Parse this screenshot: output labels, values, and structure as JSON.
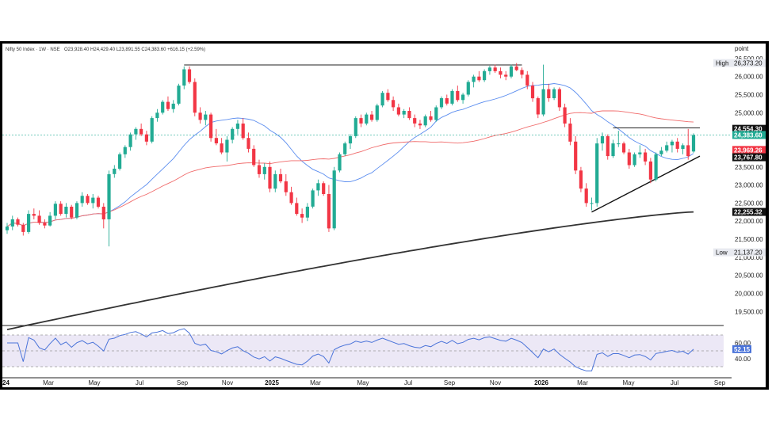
{
  "header": {
    "text": "Nifty 50 Index · 1W · NSE",
    "ohlc": "O23,928.40  H24,429.40  L23,891.55  C24,383.60  +616.15 (+2.59%)"
  },
  "chart_data": {
    "type": "candlestick",
    "title": "Nifty 50 Index · 1W · NSE",
    "price_axis_label": "point",
    "price_ticks": [
      "26,500.00",
      "26,000.00",
      "25,500.00",
      "25,000.00",
      "24,500.00",
      "23,500.00",
      "23,000.00",
      "22,500.00",
      "22,000.00",
      "21,500.00",
      "21,000.00",
      "20,500.00",
      "20,000.00",
      "19,500.00"
    ],
    "price_range": [
      19200,
      26650
    ],
    "x_ticks": [
      {
        "label": "24",
        "bold": true
      },
      {
        "label": "Mar",
        "bold": false
      },
      {
        "label": "May",
        "bold": false
      },
      {
        "label": "Jul",
        "bold": false
      },
      {
        "label": "Sep",
        "bold": false
      },
      {
        "label": "Nov",
        "bold": false
      },
      {
        "label": "2025",
        "bold": true
      },
      {
        "label": "Mar",
        "bold": false
      },
      {
        "label": "May",
        "bold": false
      },
      {
        "label": "Jul",
        "bold": false
      },
      {
        "label": "Sep",
        "bold": false
      },
      {
        "label": "Nov",
        "bold": false
      },
      {
        "label": "2026",
        "bold": true
      },
      {
        "label": "Mar",
        "bold": false
      },
      {
        "label": "May",
        "bold": false
      },
      {
        "label": "Jul",
        "bold": false
      },
      {
        "label": "Sep",
        "bold": false
      }
    ],
    "price_tags": [
      {
        "label": "High",
        "value": "26,373.20",
        "price": 26373.2,
        "style": "high"
      },
      {
        "label": "",
        "value": "24,554.30",
        "price": 24554.3,
        "style": "black"
      },
      {
        "label": "",
        "value": "24,383.60",
        "price": 24383.6,
        "style": "green"
      },
      {
        "label": "",
        "value": "23,969.26",
        "price": 23969.26,
        "style": "red"
      },
      {
        "label": "",
        "value": "23,767.80",
        "price": 23767.8,
        "style": "black"
      },
      {
        "label": "",
        "value": "22,255.32",
        "price": 22255.32,
        "style": "black"
      },
      {
        "label": "Low",
        "value": "21,137.20",
        "price": 21137.2,
        "style": "low"
      }
    ],
    "rsi": {
      "ticks": [
        "60.00",
        "40.00"
      ],
      "current": "52.15",
      "range": [
        20,
        80
      ],
      "levels": [
        70,
        50,
        30
      ]
    },
    "colors": {
      "up": "#22ab94",
      "down": "#f23645",
      "sma20": "#5b8def",
      "sma50": "#f06a6a",
      "sma200": "#333333",
      "rsi": "#4a73d9",
      "rsi_bg": "#ece8f6"
    },
    "candles": [
      [
        21750,
        21950,
        21650,
        21850
      ],
      [
        21850,
        22150,
        21750,
        22050
      ],
      [
        22050,
        22100,
        21850,
        21900
      ],
      [
        21900,
        21950,
        21600,
        21700
      ],
      [
        21700,
        22300,
        21650,
        22200
      ],
      [
        22200,
        22350,
        22050,
        22150
      ],
      [
        22150,
        22300,
        21900,
        21950
      ],
      [
        21950,
        22050,
        21800,
        21880
      ],
      [
        21880,
        22250,
        21850,
        22150
      ],
      [
        22150,
        22550,
        22050,
        22480
      ],
      [
        22480,
        22550,
        22150,
        22200
      ],
      [
        22200,
        22500,
        22100,
        22400
      ],
      [
        22400,
        22450,
        22050,
        22100
      ],
      [
        22100,
        22550,
        22050,
        22500
      ],
      [
        22500,
        22800,
        22400,
        22700
      ],
      [
        22700,
        22750,
        22450,
        22500
      ],
      [
        22500,
        22750,
        22350,
        22650
      ],
      [
        22650,
        22700,
        22350,
        22400
      ],
      [
        22400,
        22500,
        21800,
        22050
      ],
      [
        22050,
        23400,
        21300,
        23300
      ],
      [
        23300,
        23550,
        23200,
        23450
      ],
      [
        23450,
        23900,
        23400,
        23850
      ],
      [
        23850,
        24100,
        23750,
        24050
      ],
      [
        24050,
        24450,
        23950,
        24400
      ],
      [
        24400,
        24600,
        24250,
        24550
      ],
      [
        24550,
        24700,
        24350,
        24400
      ],
      [
        24400,
        24500,
        24100,
        24200
      ],
      [
        24200,
        24900,
        24150,
        24850
      ],
      [
        24850,
        25100,
        24750,
        25000
      ],
      [
        25000,
        25350,
        24950,
        25300
      ],
      [
        25300,
        25450,
        25050,
        25100
      ],
      [
        25100,
        25350,
        25000,
        25250
      ],
      [
        25250,
        25800,
        25200,
        25750
      ],
      [
        25750,
        26280,
        25650,
        26200
      ],
      [
        26200,
        26280,
        25800,
        25850
      ],
      [
        25850,
        25950,
        24900,
        25000
      ],
      [
        25000,
        25150,
        24700,
        24800
      ],
      [
        24800,
        25050,
        24650,
        24950
      ],
      [
        24950,
        25000,
        24200,
        24300
      ],
      [
        24300,
        24550,
        24100,
        24150
      ],
      [
        24150,
        24300,
        23850,
        23900
      ],
      [
        23900,
        24350,
        23650,
        24250
      ],
      [
        24250,
        24600,
        24150,
        24550
      ],
      [
        24550,
        24800,
        24400,
        24700
      ],
      [
        24700,
        24850,
        24250,
        24300
      ],
      [
        24300,
        24450,
        23900,
        24000
      ],
      [
        24000,
        24100,
        23500,
        23550
      ],
      [
        23550,
        23700,
        23200,
        23300
      ],
      [
        23300,
        23600,
        23150,
        23500
      ],
      [
        23500,
        23650,
        22800,
        22900
      ],
      [
        22900,
        23400,
        22800,
        23300
      ],
      [
        23300,
        23450,
        23050,
        23100
      ],
      [
        23100,
        23300,
        22700,
        22800
      ],
      [
        22800,
        22950,
        22450,
        22500
      ],
      [
        22500,
        22650,
        22150,
        22200
      ],
      [
        22200,
        22350,
        21950,
        22100
      ],
      [
        22100,
        22500,
        22000,
        22400
      ],
      [
        22400,
        22900,
        22350,
        22850
      ],
      [
        22850,
        23150,
        22700,
        23050
      ],
      [
        23050,
        23100,
        22700,
        22750
      ],
      [
        22750,
        23000,
        21700,
        21800
      ],
      [
        21800,
        23500,
        21750,
        23400
      ],
      [
        23400,
        23900,
        23350,
        23850
      ],
      [
        23850,
        24200,
        23800,
        24150
      ],
      [
        24150,
        24400,
        24000,
        24350
      ],
      [
        24350,
        24900,
        24300,
        24850
      ],
      [
        24850,
        24950,
        24600,
        24700
      ],
      [
        24700,
        25000,
        24650,
        24950
      ],
      [
        24950,
        25050,
        24750,
        24800
      ],
      [
        24800,
        25250,
        24750,
        25200
      ],
      [
        25200,
        25600,
        25150,
        25550
      ],
      [
        25550,
        25650,
        25300,
        25350
      ],
      [
        25350,
        25450,
        25050,
        25150
      ],
      [
        25150,
        25250,
        24900,
        24950
      ],
      [
        24950,
        25100,
        24850,
        25050
      ],
      [
        25050,
        25150,
        24800,
        24850
      ],
      [
        24850,
        24950,
        24600,
        24700
      ],
      [
        24700,
        24800,
        24550,
        24650
      ],
      [
        24650,
        24950,
        24600,
        24900
      ],
      [
        24900,
        25050,
        24750,
        24800
      ],
      [
        24800,
        25200,
        24750,
        25150
      ],
      [
        25150,
        25450,
        25100,
        25400
      ],
      [
        25400,
        25500,
        25200,
        25250
      ],
      [
        25250,
        25650,
        25200,
        25600
      ],
      [
        25600,
        25750,
        25300,
        25350
      ],
      [
        25350,
        25550,
        25250,
        25500
      ],
      [
        25500,
        25900,
        25450,
        25850
      ],
      [
        25850,
        26050,
        25700,
        26000
      ],
      [
        26000,
        26150,
        25850,
        25900
      ],
      [
        25900,
        26200,
        25850,
        26150
      ],
      [
        26150,
        26300,
        26050,
        26250
      ],
      [
        26250,
        26330,
        26100,
        26150
      ],
      [
        26150,
        26250,
        25950,
        26050
      ],
      [
        26050,
        26150,
        25900,
        26000
      ],
      [
        26000,
        26330,
        25950,
        26280
      ],
      [
        26280,
        26373,
        26150,
        26180
      ],
      [
        26180,
        26250,
        25950,
        26050
      ],
      [
        26050,
        26150,
        25650,
        25750
      ],
      [
        25750,
        25850,
        25300,
        25400
      ],
      [
        25400,
        25450,
        24850,
        24950
      ],
      [
        24950,
        26330,
        24900,
        25650
      ],
      [
        25650,
        25800,
        25300,
        25400
      ],
      [
        25400,
        25700,
        25350,
        25650
      ],
      [
        25650,
        25700,
        25050,
        25150
      ],
      [
        25150,
        25250,
        24600,
        24700
      ],
      [
        24700,
        24850,
        24100,
        24200
      ],
      [
        24200,
        24350,
        23300,
        23400
      ],
      [
        23400,
        23500,
        22800,
        22900
      ],
      [
        22900,
        23050,
        22400,
        22500
      ],
      [
        22500,
        22650,
        22300,
        22500
      ],
      [
        22500,
        24300,
        22400,
        24150
      ],
      [
        24150,
        24450,
        23950,
        24350
      ],
      [
        24350,
        24400,
        23700,
        23800
      ],
      [
        23800,
        24250,
        23750,
        24150
      ],
      [
        24150,
        24500,
        24050,
        24150
      ],
      [
        24150,
        24200,
        23850,
        23900
      ],
      [
        23900,
        24000,
        23450,
        23550
      ],
      [
        23550,
        23900,
        23500,
        23850
      ],
      [
        23850,
        24100,
        23750,
        23900
      ],
      [
        23900,
        24000,
        23550,
        23650
      ],
      [
        23650,
        23750,
        23050,
        23150
      ],
      [
        23150,
        23900,
        23100,
        23850
      ],
      [
        23850,
        24050,
        23800,
        23950
      ],
      [
        23950,
        24200,
        23900,
        24100
      ],
      [
        24100,
        24250,
        23900,
        24200
      ],
      [
        24200,
        24300,
        23900,
        24000
      ],
      [
        24000,
        24150,
        23850,
        24100
      ],
      [
        24100,
        24550,
        23700,
        23800
      ],
      [
        23928,
        24429,
        23891,
        24383
      ]
    ]
  }
}
